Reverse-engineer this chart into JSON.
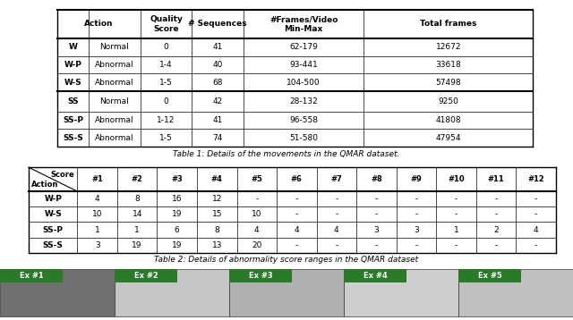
{
  "table1": {
    "caption": "Table 1: Details of the movements in the QMAR dataset.",
    "rows": [
      [
        "W",
        "Normal",
        "0",
        "41",
        "62-179",
        "12672"
      ],
      [
        "W-P",
        "Abnormal",
        "1-4",
        "40",
        "93-441",
        "33618"
      ],
      [
        "W-S",
        "Abnormal",
        "1-5",
        "68",
        "104-500",
        "57498"
      ],
      [
        "SS",
        "Normal",
        "0",
        "42",
        "28-132",
        "9250"
      ],
      [
        "SS-P",
        "Abnormal",
        "1-12",
        "41",
        "96-558",
        "41808"
      ],
      [
        "SS-S",
        "Abnormal",
        "1-5",
        "74",
        "51-580",
        "47954"
      ]
    ]
  },
  "table2": {
    "caption": "Table 2: Details of abnormality score ranges in the QMAR dataset",
    "rows": [
      [
        "W-P",
        "4",
        "8",
        "16",
        "12",
        "-",
        "-",
        "-",
        "-",
        "-",
        "-",
        "-",
        "-"
      ],
      [
        "W-S",
        "10",
        "14",
        "19",
        "15",
        "10",
        "-",
        "-",
        "-",
        "-",
        "-",
        "-",
        "-"
      ],
      [
        "SS-P",
        "1",
        "1",
        "6",
        "8",
        "4",
        "4",
        "4",
        "3",
        "3",
        "1",
        "2",
        "4"
      ],
      [
        "SS-S",
        "3",
        "19",
        "19",
        "13",
        "20",
        "-",
        "-",
        "-",
        "-",
        "-",
        "-",
        "-"
      ]
    ]
  },
  "image_labels": [
    "Ex #1",
    "Ex #2",
    "Ex #3",
    "Ex #4",
    "Ex #5"
  ],
  "panel_colors": [
    "#707070",
    "#c5c5c5",
    "#b0b0b0",
    "#cecece",
    "#c0c0c0"
  ],
  "label_color": "#2a7a2a"
}
